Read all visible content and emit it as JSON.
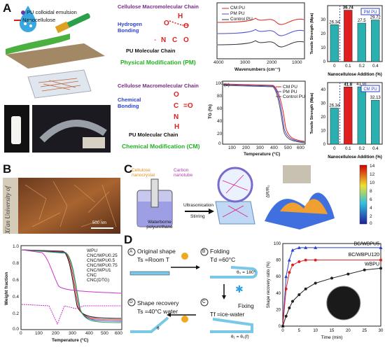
{
  "panels": {
    "A": "A",
    "B": "B",
    "C": "C",
    "D": "D"
  },
  "panelA": {
    "legend": {
      "emulsion": "PU colloidal emulsion",
      "nano": "Nanocellulose"
    },
    "pm": {
      "chain_top": "Cellulose Macromolecular Chain",
      "bond": "Hydrogen Bonding",
      "chain_bottom": "PU Molecular Chain",
      "title": "Physical Modification (PM)"
    },
    "cm": {
      "chain_top": "Cellulose Macromolecular Chain",
      "bond": "Chemical Bonding",
      "chain_bottom": "PU Molecular Chain",
      "title": "Chemical Modification (CM)"
    },
    "ftir": {
      "legend": [
        "CM PU",
        "PM PU",
        "Control PU"
      ],
      "xlabel": "Wavenumbers (cm⁻¹)",
      "xticks": [
        "4000",
        "3000",
        "2000",
        "1000"
      ]
    },
    "tg": {
      "tag": "(e)",
      "legend": [
        "CM PU",
        "PM PU",
        "Control PU"
      ],
      "ylabel": "TG (%)",
      "xlabel": "Temperature (°C)",
      "xticks": [
        "100",
        "200",
        "300",
        "400",
        "500",
        "600"
      ],
      "yticks": [
        "0",
        "20",
        "40",
        "60",
        "80",
        "100"
      ]
    }
  },
  "chart_data": [
    {
      "type": "bar",
      "title": "",
      "tag": "PM PU",
      "categories": [
        "0",
        "0.1",
        "0.2",
        "0.4"
      ],
      "values": [
        26.34,
        36.74,
        27.5,
        29.72
      ],
      "labels": [
        "26.34",
        "36.74",
        "27.5",
        "29.72"
      ],
      "ylabel": "Tensile Strength (Mpa)",
      "xlabel": "Nanocellulose Addition (%)",
      "ylim": [
        0,
        40
      ],
      "yticks": [
        "0",
        "10",
        "20",
        "30"
      ]
    },
    {
      "type": "bar",
      "title": "",
      "tag": "CM PU",
      "categories": [
        "0",
        "0.1",
        "0.2",
        "0.4"
      ],
      "values": [
        26.34,
        41.8,
        41.91,
        32.13
      ],
      "labels": [
        "26.34",
        "41.8",
        "41.91",
        "32.13"
      ],
      "ylabel": "Tensile Strength (Mpa)",
      "xlabel": "Nanocellulose Addition (%)",
      "ylim": [
        0,
        45
      ],
      "yticks": [
        "0",
        "10",
        "20",
        "30",
        "40"
      ]
    },
    {
      "type": "line",
      "title": "",
      "xlabel": "Time (min)",
      "ylabel": "Shape recovery ratio (%)",
      "xlim": [
        0,
        30
      ],
      "ylim": [
        0,
        100
      ],
      "xticks": [
        "0",
        "5",
        "10",
        "15",
        "20",
        "25",
        "30"
      ],
      "yticks": [
        "0",
        "20",
        "40",
        "60",
        "80",
        "100"
      ],
      "series": [
        {
          "name": "BC/WBPU5",
          "color": "#2a3fd0",
          "x": [
            0,
            1,
            2,
            3,
            5,
            7,
            10,
            30
          ],
          "y": [
            0,
            60,
            80,
            92,
            95,
            95,
            95,
            95
          ]
        },
        {
          "name": "BC/WBPU120",
          "color": "#e02020",
          "x": [
            0,
            1,
            2,
            3,
            5,
            7,
            10,
            30
          ],
          "y": [
            0,
            45,
            65,
            74,
            78,
            80,
            80,
            80
          ]
        },
        {
          "name": "WBPU",
          "color": "#222222",
          "x": [
            0,
            1,
            2,
            3,
            5,
            7,
            10,
            15,
            20,
            25,
            30
          ],
          "y": [
            0,
            12,
            22,
            30,
            38,
            45,
            52,
            58,
            63,
            68,
            70
          ]
        }
      ]
    }
  ],
  "panelB": {
    "scale": "500 nm",
    "left_text": "Xi'an University of",
    "thermo": {
      "legend": [
        "WPU",
        "CNC/WPU0.25",
        "CNC/WPU0.5",
        "CNC/WPU0.75",
        "CNC/WPU1",
        "CNC",
        "CNC(DTG)"
      ],
      "ylabel": "Weight fraction",
      "xlabel": "Temperature (°C)",
      "xticks": [
        "0",
        "100",
        "200",
        "300",
        "400",
        "500",
        "600"
      ],
      "yticks": [
        "0.0",
        "0.2",
        "0.4",
        "0.6",
        "0.8",
        "1.0"
      ]
    }
  },
  "panelC": {
    "cnc": "Cellulose nanocrystal",
    "cnt": "Carbon nanotube",
    "wbpu": "Waterborne polyurethane",
    "ultra": "Ultrasonication",
    "stir": "Stirring",
    "colorbar": [
      "14",
      "12",
      "10",
      "8",
      "6",
      "4",
      "2",
      "0"
    ],
    "zlabel": "ΔR/R₀"
  },
  "panelD": {
    "a": {
      "tag": "A",
      "title": "Original shape",
      "sub": "Ts =Room T"
    },
    "b": {
      "tag": "B",
      "title": "Folding",
      "sub": "Td =60°C",
      "angle": "θ₀ = 180°"
    },
    "c": {
      "tag": "C",
      "title": "Fixing",
      "sub": "Tf =ice-water",
      "angle": "θ₁ = θ₀(f)"
    },
    "d": {
      "tag": "D",
      "title": "Shape recovery",
      "sub": "Ts =40°C water",
      "angle": "θ"
    }
  }
}
